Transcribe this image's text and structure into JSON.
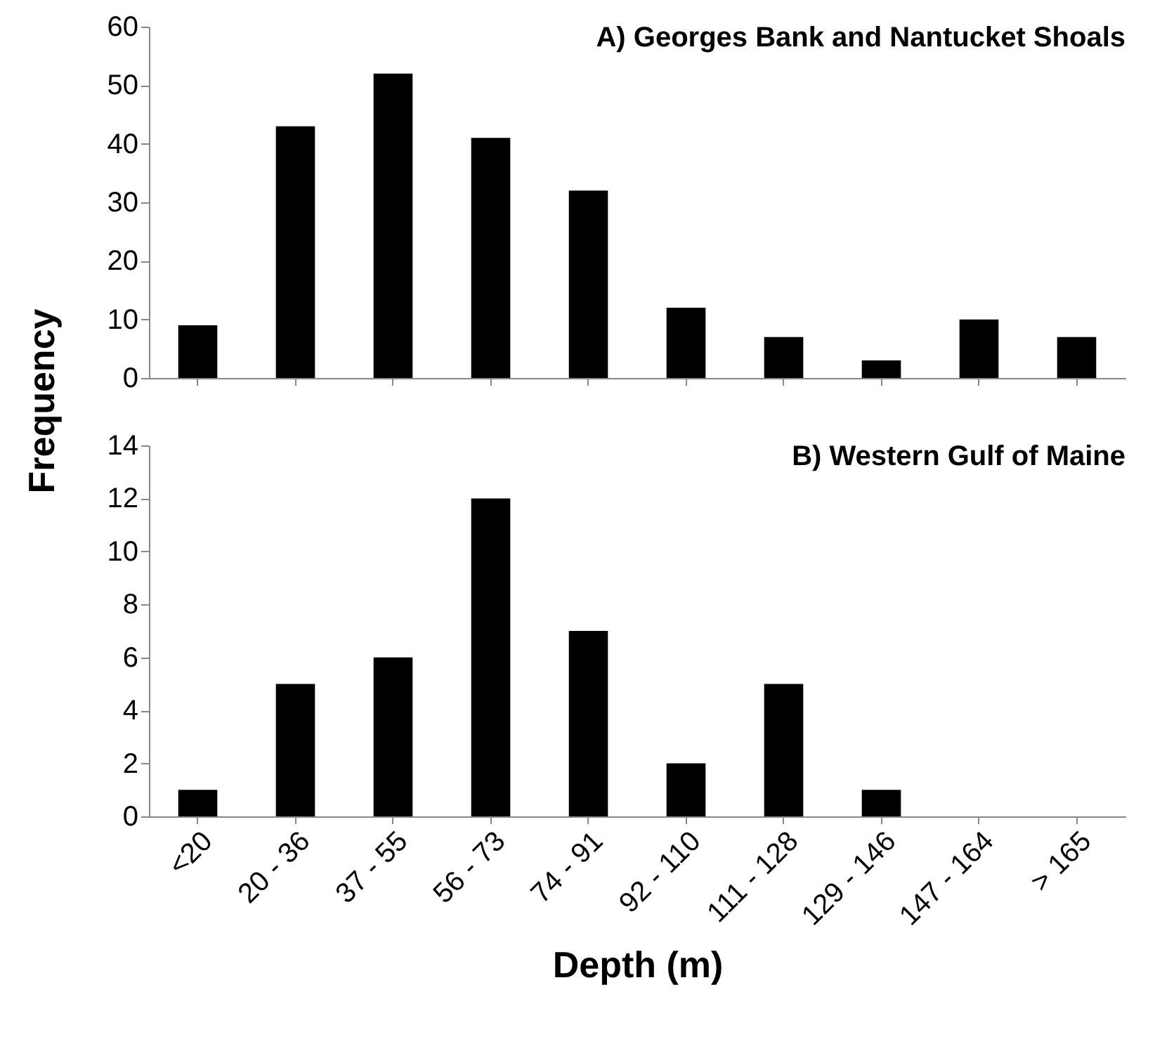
{
  "chart_data": [
    {
      "type": "bar",
      "title": "A) Georges Bank and Nantucket Shoals",
      "ylabel": "Frequency",
      "categories": [
        null,
        null,
        null,
        null,
        null,
        null,
        null,
        null,
        null,
        null
      ],
      "values": [
        9,
        43,
        52,
        41,
        32,
        12,
        7,
        3,
        10,
        7
      ],
      "color": "#000000",
      "ylim": [
        0,
        60
      ],
      "yticks": [
        0,
        10,
        20,
        30,
        40,
        50,
        60
      ],
      "grid": false
    },
    {
      "type": "bar",
      "title": "B) Western Gulf of Maine",
      "xlabel": "Depth (m)",
      "categories": [
        "<20",
        "20 - 36",
        "37 - 55",
        "56 - 73",
        "74 - 91",
        "92 - 110",
        "111 - 128",
        "129 - 146",
        "147 - 164",
        "> 165"
      ],
      "values": [
        1,
        5,
        6,
        12,
        7,
        2,
        5,
        1,
        0,
        0
      ],
      "color": "#000000",
      "ylim": [
        0,
        14
      ],
      "yticks": [
        0,
        2,
        4,
        6,
        8,
        10,
        12,
        14
      ],
      "grid": false
    }
  ]
}
